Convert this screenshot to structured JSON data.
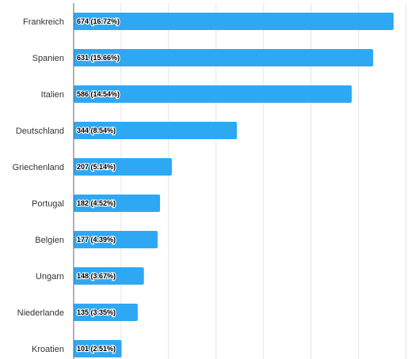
{
  "chart_data": {
    "type": "bar",
    "orientation": "horizontal",
    "categories": [
      "Frankreich",
      "Spanien",
      "Italien",
      "Deutschland",
      "Griechenland",
      "Portugal",
      "Belgien",
      "Ungarn",
      "Niederlande",
      "Kroatien"
    ],
    "values": [
      674,
      631,
      586,
      344,
      207,
      182,
      177,
      148,
      135,
      101
    ],
    "value_labels": [
      "674 (16.72%)",
      "631 (15.66%)",
      "586 (14.54%)",
      "344 (8.54%)",
      "207 (5.14%)",
      "182 (4.52%)",
      "177 (4.39%)",
      "148 (3.67%)",
      "135 (3.35%)",
      "101 (2.51%)"
    ],
    "xlim": [
      0,
      700
    ],
    "grid": true,
    "bar_color": "#2ea8f3",
    "grid_color": "#e3e3e3",
    "axis_color": "#666666"
  }
}
